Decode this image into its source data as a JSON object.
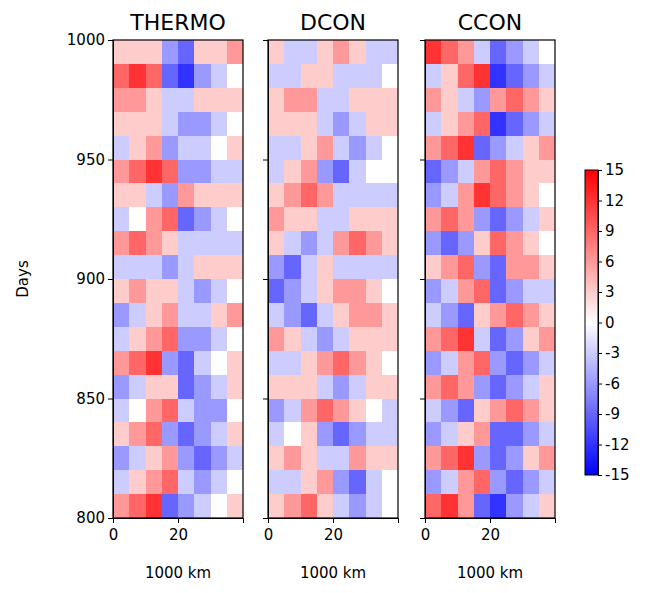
{
  "chart_data": [
    {
      "type": "heatmap",
      "title": "THERMO",
      "x_label": "1000 km",
      "y_label": "Days",
      "xlim": [
        0,
        40
      ],
      "ylim": [
        800,
        1000
      ],
      "xticks": [
        0,
        20
      ],
      "yticks": [
        800,
        850,
        900,
        950,
        1000
      ],
      "x_edges": [
        0,
        5,
        10,
        15,
        20,
        25,
        30,
        35,
        40
      ],
      "y_edges": [
        800,
        810,
        820,
        830,
        840,
        850,
        860,
        870,
        880,
        890,
        900,
        910,
        920,
        930,
        940,
        950,
        960,
        970,
        980,
        990,
        1000
      ],
      "z": [
        [
          6,
          9,
          12,
          -9,
          -6,
          -3,
          0,
          3
        ],
        [
          -3,
          3,
          6,
          9,
          -3,
          -6,
          -3,
          0
        ],
        [
          -6,
          -3,
          3,
          6,
          -6,
          -9,
          -6,
          -3
        ],
        [
          3,
          6,
          9,
          -6,
          -9,
          -6,
          -3,
          3
        ],
        [
          -3,
          0,
          6,
          9,
          -3,
          -6,
          -6,
          0
        ],
        [
          -6,
          -3,
          3,
          3,
          -9,
          -6,
          -3,
          3
        ],
        [
          6,
          9,
          12,
          -6,
          -9,
          -3,
          0,
          3
        ],
        [
          -3,
          3,
          6,
          9,
          -6,
          -6,
          -3,
          0
        ],
        [
          -6,
          -3,
          3,
          6,
          -3,
          -3,
          3,
          6
        ],
        [
          3,
          6,
          3,
          3,
          -3,
          -6,
          -3,
          0
        ],
        [
          -3,
          -3,
          -3,
          -6,
          -3,
          3,
          3,
          3
        ],
        [
          6,
          9,
          6,
          3,
          -3,
          -3,
          -3,
          -3
        ],
        [
          -3,
          0,
          6,
          9,
          -9,
          -6,
          -3,
          0
        ],
        [
          3,
          3,
          -3,
          -6,
          6,
          3,
          3,
          3
        ],
        [
          6,
          9,
          12,
          9,
          -6,
          -6,
          -3,
          -3
        ],
        [
          -3,
          3,
          6,
          -6,
          -3,
          -3,
          0,
          3
        ],
        [
          3,
          3,
          3,
          -3,
          -6,
          -6,
          -3,
          0
        ],
        [
          6,
          6,
          3,
          -3,
          -3,
          3,
          3,
          3
        ],
        [
          9,
          12,
          9,
          -9,
          -12,
          -6,
          -3,
          0
        ],
        [
          3,
          3,
          3,
          -6,
          -9,
          3,
          3,
          6
        ]
      ]
    },
    {
      "type": "heatmap",
      "title": "DCON",
      "x_label": "1000 km",
      "tick_labels": "x",
      "xlim": [
        0,
        40
      ],
      "ylim": [
        800,
        1000
      ],
      "xticks": [
        0,
        20
      ],
      "yticks": [
        800,
        850,
        900,
        950,
        1000
      ],
      "x_edges": [
        0,
        5,
        10,
        15,
        20,
        25,
        30,
        35,
        40
      ],
      "y_edges": [
        800,
        810,
        820,
        830,
        840,
        850,
        860,
        870,
        880,
        890,
        900,
        910,
        920,
        930,
        940,
        950,
        960,
        970,
        980,
        990,
        1000
      ],
      "z": [
        [
          3,
          6,
          9,
          3,
          -3,
          -6,
          -3,
          0
        ],
        [
          -3,
          -3,
          3,
          6,
          -6,
          -9,
          -3,
          0
        ],
        [
          3,
          6,
          3,
          -3,
          -3,
          6,
          3,
          3
        ],
        [
          -3,
          0,
          3,
          -6,
          -9,
          -6,
          -3,
          -3
        ],
        [
          -6,
          -3,
          6,
          9,
          6,
          3,
          0,
          -3
        ],
        [
          3,
          3,
          3,
          -3,
          -6,
          -3,
          3,
          3
        ],
        [
          -3,
          -3,
          3,
          6,
          9,
          6,
          3,
          0
        ],
        [
          6,
          3,
          -3,
          -6,
          -3,
          3,
          3,
          3
        ],
        [
          -3,
          -6,
          -9,
          -3,
          3,
          6,
          6,
          3
        ],
        [
          -9,
          -6,
          -3,
          3,
          6,
          6,
          3,
          0
        ],
        [
          -6,
          -9,
          -3,
          3,
          -3,
          -3,
          -3,
          -3
        ],
        [
          3,
          -3,
          -6,
          -3,
          6,
          9,
          6,
          3
        ],
        [
          6,
          3,
          3,
          -3,
          -3,
          3,
          3,
          3
        ],
        [
          3,
          6,
          9,
          6,
          -3,
          -3,
          -3,
          -3
        ],
        [
          -3,
          3,
          6,
          -6,
          -9,
          -3,
          0,
          0
        ],
        [
          -3,
          -3,
          3,
          6,
          -3,
          -6,
          -3,
          0
        ],
        [
          3,
          3,
          3,
          -3,
          -6,
          -3,
          3,
          3
        ],
        [
          3,
          6,
          6,
          -3,
          -3,
          3,
          3,
          3
        ],
        [
          -3,
          -3,
          3,
          3,
          -3,
          -3,
          -3,
          0
        ],
        [
          3,
          -3,
          -3,
          3,
          6,
          3,
          -3,
          -3
        ]
      ]
    },
    {
      "type": "heatmap",
      "title": "CCON",
      "x_label": "1000 km",
      "tick_labels": "x",
      "xlim": [
        0,
        40
      ],
      "ylim": [
        800,
        1000
      ],
      "xticks": [
        0,
        20
      ],
      "yticks": [
        800,
        850,
        900,
        950,
        1000
      ],
      "x_edges": [
        0,
        5,
        10,
        15,
        20,
        25,
        30,
        35,
        40
      ],
      "y_edges": [
        800,
        810,
        820,
        830,
        840,
        850,
        860,
        870,
        880,
        890,
        900,
        910,
        920,
        930,
        940,
        950,
        960,
        970,
        980,
        990,
        1000
      ],
      "z": [
        [
          9,
          12,
          6,
          -9,
          -12,
          -6,
          -3,
          3
        ],
        [
          -6,
          -3,
          6,
          9,
          -6,
          -9,
          -6,
          -3
        ],
        [
          6,
          9,
          12,
          -6,
          -9,
          -6,
          3,
          6
        ],
        [
          -6,
          -3,
          3,
          6,
          -9,
          -9,
          -6,
          -3
        ],
        [
          -3,
          -6,
          -9,
          3,
          6,
          9,
          6,
          3
        ],
        [
          6,
          9,
          6,
          -6,
          -9,
          -6,
          -3,
          3
        ],
        [
          -6,
          -3,
          6,
          9,
          -6,
          -9,
          -6,
          -3
        ],
        [
          6,
          9,
          12,
          -3,
          -9,
          -6,
          3,
          6
        ],
        [
          -3,
          -6,
          -9,
          3,
          6,
          9,
          6,
          3
        ],
        [
          -6,
          -3,
          6,
          9,
          -9,
          -6,
          -3,
          -3
        ],
        [
          3,
          6,
          9,
          -6,
          -9,
          6,
          6,
          3
        ],
        [
          -6,
          -9,
          -6,
          3,
          9,
          6,
          3,
          0
        ],
        [
          6,
          9,
          6,
          -6,
          -9,
          -6,
          -3,
          3
        ],
        [
          -6,
          -3,
          6,
          12,
          9,
          6,
          3,
          0
        ],
        [
          -9,
          -6,
          -3,
          6,
          9,
          6,
          3,
          3
        ],
        [
          6,
          9,
          12,
          -9,
          -6,
          -3,
          3,
          6
        ],
        [
          -3,
          3,
          6,
          9,
          -12,
          -9,
          -6,
          -3
        ],
        [
          6,
          3,
          -3,
          -6,
          6,
          9,
          6,
          3
        ],
        [
          -3,
          3,
          9,
          12,
          -12,
          -9,
          -6,
          -3
        ],
        [
          12,
          9,
          6,
          -3,
          -9,
          -6,
          -3,
          0
        ]
      ],
      "colorbar": {
        "range": [
          -15,
          15
        ],
        "ticks": [
          -15,
          -12,
          -9,
          -6,
          -3,
          0,
          3,
          6,
          9,
          12,
          15
        ]
      }
    }
  ]
}
